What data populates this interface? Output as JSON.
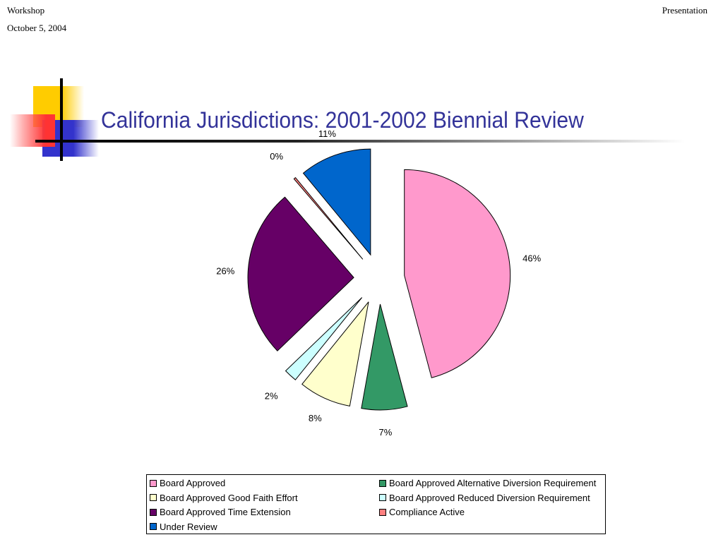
{
  "header": {
    "left": "Workshop",
    "date": "October 5, 2004",
    "right": "Presentation"
  },
  "slide": {
    "title": "California Jurisdictions: 2001-2002 Biennial Review"
  },
  "colors": {
    "title": "#333399",
    "deco_yellow": "#ffcc00",
    "deco_red": "#ff3333",
    "deco_blue": "#3333cc"
  },
  "chart_data": {
    "type": "pie",
    "exploded": true,
    "legend_position": "bottom",
    "slices": [
      {
        "name": "Board Approved",
        "value": 46,
        "label": "46%",
        "color": "#ff99cc"
      },
      {
        "name": "Board Approved Alternative Diversion Requirement",
        "value": 7,
        "label": "7%",
        "color": "#339966"
      },
      {
        "name": "Board Approved Good Faith Effort",
        "value": 8,
        "label": "8%",
        "color": "#ffffcc"
      },
      {
        "name": "Board Approved Reduced Diversion Requirement",
        "value": 2,
        "label": "2%",
        "color": "#ccffff"
      },
      {
        "name": "Board Approved Time Extension",
        "value": 26,
        "label": "26%",
        "color": "#660066"
      },
      {
        "name": "Compliance Active",
        "value": 0.3,
        "label": "0%",
        "color": "#ff8080"
      },
      {
        "name": "Under Review",
        "value": 11,
        "label": "11%",
        "color": "#0066cc"
      }
    ]
  }
}
